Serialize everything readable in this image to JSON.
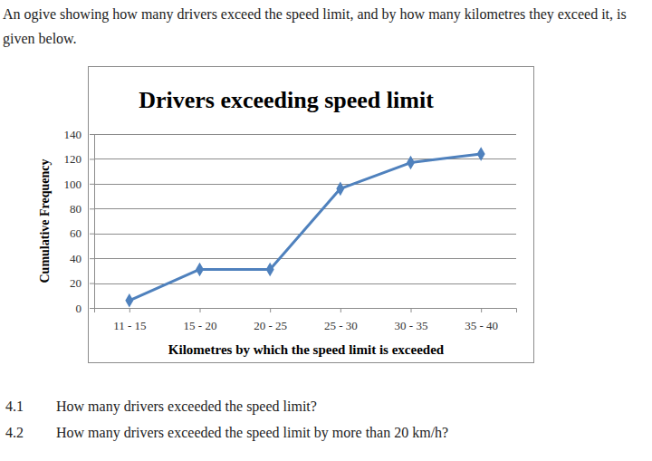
{
  "intro": "An ogive showing how many drivers exceed the speed limit, and by how many kilometres they exceed it, is given below.",
  "chart_data": {
    "type": "line",
    "title": "Drivers exceeding speed limit",
    "x_label": "Kilometres by which the speed limit is exceeded",
    "y_label": "Cumulative Frequency",
    "categories": [
      "11 - 15",
      "15 - 20",
      "20 - 25",
      "25 - 30",
      "30 - 35",
      "35 - 40"
    ],
    "values": [
      6,
      31,
      31,
      96,
      117,
      124
    ],
    "color": "#4f81bd",
    "marker": "diamond",
    "ylim": [
      0,
      140
    ],
    "yticks": [
      0,
      20,
      40,
      60,
      80,
      100,
      120,
      140
    ],
    "grid": true
  },
  "questions": [
    {
      "number": "4.1",
      "text": "How many drivers exceeded the speed limit?"
    },
    {
      "number": "4.2",
      "text": "How many drivers exceeded the speed limit by more than 20 km/h?"
    }
  ]
}
